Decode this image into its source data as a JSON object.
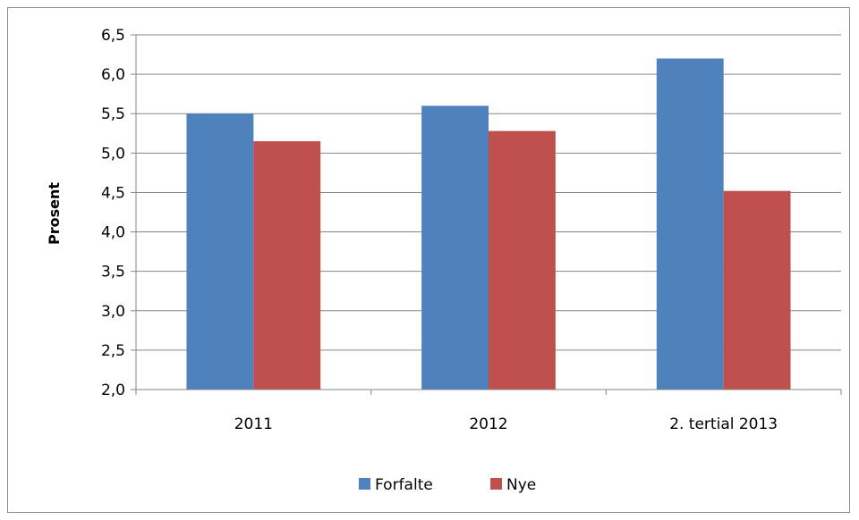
{
  "chart_data": {
    "type": "bar",
    "categories": [
      "2011",
      "2012",
      "2. tertial 2013"
    ],
    "series": [
      {
        "name": "Forfalte",
        "values": [
          5.5,
          5.6,
          6.2
        ],
        "color": "#4f81bd"
      },
      {
        "name": "Nye",
        "values": [
          5.15,
          5.28,
          4.52
        ],
        "color": "#c0504d"
      }
    ],
    "title": "",
    "xlabel": "",
    "ylabel": "Prosent",
    "ylim": [
      2.0,
      6.5
    ],
    "yticks": [
      "2,0",
      "2,5",
      "3,0",
      "3,5",
      "4,0",
      "4,5",
      "5,0",
      "5,5",
      "6,0",
      "6,5"
    ],
    "grid": true,
    "legend_position": "bottom"
  }
}
